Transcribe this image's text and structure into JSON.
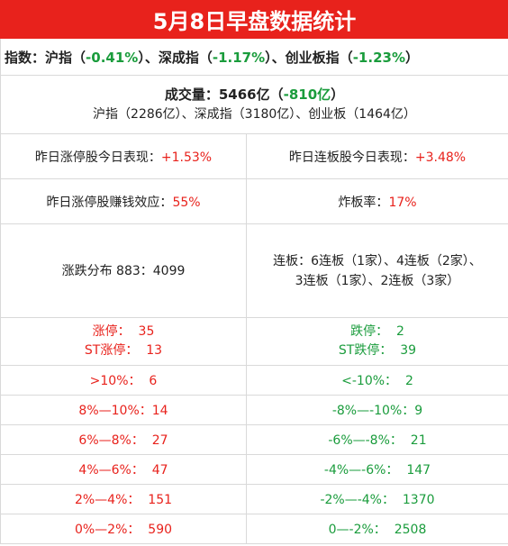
{
  "title": "5月8日早盘数据统计",
  "index_line": {
    "prefix": "指数：",
    "items": [
      {
        "name": "沪指",
        "value": "-0.41%"
      },
      {
        "name": "深成指",
        "value": "-1.17%"
      },
      {
        "name": "创业板指",
        "value": "-1.23%"
      }
    ],
    "sep": "、"
  },
  "volume": {
    "label": "成交量：",
    "amount": "5466亿",
    "change": "-810亿",
    "detail": "沪指（2286亿）、深成指（3180亿）、创业板（1464亿）"
  },
  "yesterday_limit": {
    "label": "昨日涨停股今日表现：",
    "value": "+1.53%"
  },
  "yesterday_board": {
    "label": "昨日连板股今日表现：",
    "value": "+3.48%"
  },
  "money_effect": {
    "label": "昨日涨停股赚钱效应：",
    "value": "55%"
  },
  "break_rate": {
    "label": "炸板率：",
    "value": "17%"
  },
  "distribution": {
    "label": "涨跌分布 883：4099",
    "boards_line1": "连板：6连板（1家）、4连板（2家）、",
    "boards_line2": "3连板（1家）、2连板（3家）"
  },
  "limit_counts": {
    "up_label": "涨停：",
    "up_value": "35",
    "st_up_label": "ST涨停：",
    "st_up_value": "13",
    "down_label": "跌停：",
    "down_value": "2",
    "st_down_label": "ST跌停：",
    "st_down_value": "39"
  },
  "buckets": [
    {
      "up_label": ">10%：",
      "up_value": "6",
      "down_label": "<-10%：",
      "down_value": "2"
    },
    {
      "up_label": "8%—10%：",
      "up_value": "14",
      "down_label": "-8%—-10%：",
      "down_value": "9"
    },
    {
      "up_label": "6%—8%：",
      "up_value": "27",
      "down_label": "-6%—-8%：",
      "down_value": "21"
    },
    {
      "up_label": "4%—6%：",
      "up_value": "47",
      "down_label": "-4%—-6%：",
      "down_value": "147"
    },
    {
      "up_label": "2%—4%：",
      "up_value": "151",
      "down_label": "-2%—-4%：",
      "down_value": "1370"
    },
    {
      "up_label": "0%—2%：",
      "up_value": "590",
      "down_label": "0—-2%：",
      "down_value": "2508"
    }
  ],
  "colors": {
    "title_bg": "#e8221c",
    "up": "#e8221c",
    "down": "#1a9c3c"
  }
}
